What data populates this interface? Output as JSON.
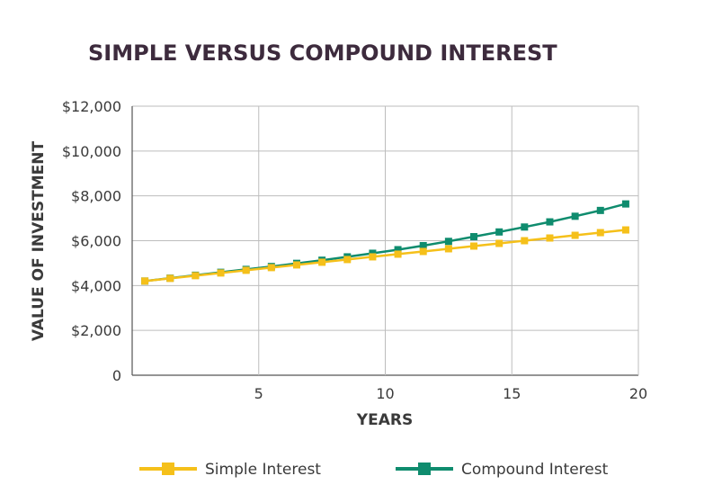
{
  "chart_data": {
    "type": "line",
    "title": "SIMPLE VERSUS COMPOUND INTEREST",
    "xlabel": "YEARS",
    "ylabel": "VALUE OF INVESTMENT",
    "xlim": [
      0,
      20
    ],
    "ylim": [
      0,
      12000
    ],
    "xticks": [
      5,
      10,
      15,
      20
    ],
    "yticks": [
      0,
      2000,
      4000,
      6000,
      8000,
      10000,
      12000
    ],
    "ytick_labels": [
      "0",
      "$2,000",
      "$4,000",
      "$6,000",
      "$8,000",
      "$10,000",
      "$12,000"
    ],
    "grid": true,
    "legend_position": "bottom",
    "x": [
      0.5,
      1.5,
      2.5,
      3.5,
      4.5,
      5.5,
      6.5,
      7.5,
      8.5,
      9.5,
      10.5,
      11.5,
      12.5,
      13.5,
      14.5,
      15.5,
      16.5,
      17.5,
      18.5,
      19.5
    ],
    "series": [
      {
        "name": "Simple Interest",
        "color": "#f5c01a",
        "values": [
          4200,
          4320,
          4440,
          4560,
          4680,
          4800,
          4920,
          5040,
          5160,
          5280,
          5400,
          5520,
          5640,
          5760,
          5880,
          6000,
          6120,
          6240,
          6360,
          6480
        ]
      },
      {
        "name": "Compound Interest",
        "color": "#0f8c6e",
        "values": [
          4200,
          4330,
          4460,
          4590,
          4720,
          4850,
          4990,
          5130,
          5280,
          5440,
          5600,
          5780,
          5970,
          6180,
          6390,
          6610,
          6840,
          7090,
          7350,
          7640
        ]
      }
    ]
  }
}
